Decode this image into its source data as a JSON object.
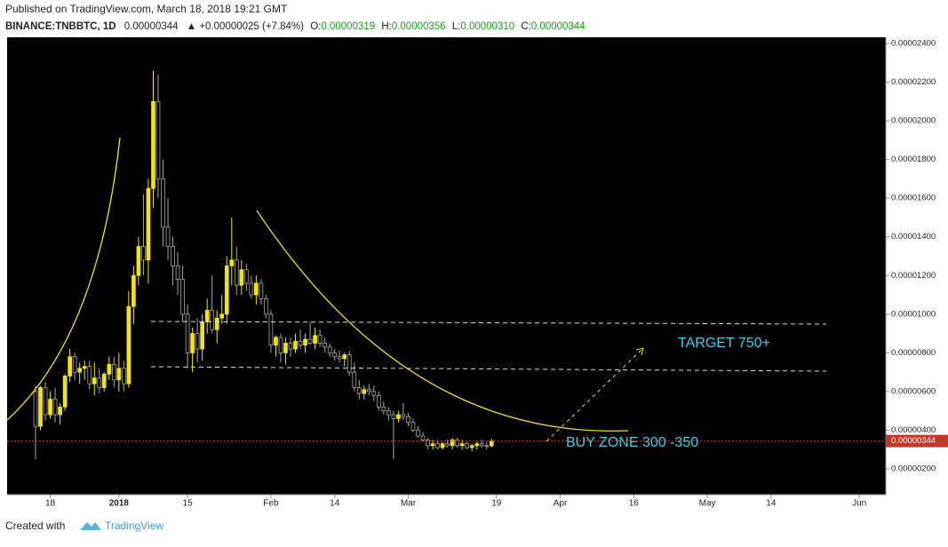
{
  "header": {
    "published": "Published on TradingView.com, March 18, 2018 19:21 GMT",
    "symbol": "BINANCE:TNBBTC, 1D",
    "last": "0.00000344",
    "change": "▲ +0.00000025 (+7.84%)",
    "open_label": "O:",
    "open": "0.00000319",
    "high_label": "H:",
    "high": "0.00000356",
    "low_label": "L:",
    "low": "0.00000310",
    "close_label": "C:",
    "close": "0.00000344"
  },
  "footer": {
    "created": "Created with",
    "brand": "TradingView"
  },
  "chart_data": {
    "type": "candlestick",
    "ohlc": [
      [
        6e-06,
        6.3e-06,
        2.5e-06,
        4.2e-06
      ],
      [
        4.2e-06,
        6.3e-06,
        4e-06,
        6.2e-06
      ],
      [
        6.2e-06,
        6.5e-06,
        4.5e-06,
        4.8e-06
      ],
      [
        4.8e-06,
        6e-06,
        4.6e-06,
        5.6e-06
      ],
      [
        5.6e-06,
        6.2e-06,
        4.4e-06,
        4.8e-06
      ],
      [
        4.8e-06,
        5.4e-06,
        4.3e-06,
        5.2e-06
      ],
      [
        5.2e-06,
        6.9e-06,
        5e-06,
        6.8e-06
      ],
      [
        6.8e-06,
        8.2e-06,
        6.5e-06,
        7.8e-06
      ],
      [
        7.8e-06,
        8e-06,
        6.6e-06,
        7e-06
      ],
      [
        7e-06,
        7.5e-06,
        6.4e-06,
        7.2e-06
      ],
      [
        7.2e-06,
        7.6e-06,
        6.6e-06,
        7.3e-06
      ],
      [
        7.3e-06,
        7.6e-06,
        6.1e-06,
        6.4e-06
      ],
      [
        6.4e-06,
        7.5e-06,
        5.8e-06,
        6.7e-06
      ],
      [
        6.7e-06,
        7.2e-06,
        5.9e-06,
        6.2e-06
      ],
      [
        6.2e-06,
        7e-06,
        6e-06,
        6.9e-06
      ],
      [
        6.9e-06,
        7.8e-06,
        6.6e-06,
        7.4e-06
      ],
      [
        7.4e-06,
        7.8e-06,
        6.2e-06,
        6.6e-06
      ],
      [
        6.6e-06,
        8e-06,
        6e-06,
        7.2e-06
      ],
      [
        7.2e-06,
        7.6e-06,
        6e-06,
        6.4e-06
      ],
      [
        6.4e-06,
        1.12e-05,
        6.2e-06,
        1.04e-05
      ],
      [
        1.04e-05,
        1.25e-05,
        9.5e-06,
        1.2e-05
      ],
      [
        1.2e-05,
        1.4e-05,
        1.15e-05,
        1.35e-05
      ],
      [
        1.35e-05,
        1.62e-05,
        1.2e-05,
        1.28e-05
      ],
      [
        1.28e-05,
        1.7e-05,
        1.16e-05,
        1.65e-05
      ],
      [
        1.65e-05,
        2.26e-05,
        1.55e-05,
        2.1e-05
      ],
      [
        2.1e-05,
        2.24e-05,
        1.6e-05,
        1.7e-05
      ],
      [
        1.7e-05,
        1.8e-05,
        1.35e-05,
        1.45e-05
      ],
      [
        1.45e-05,
        1.6e-05,
        1.28e-05,
        1.35e-05
      ],
      [
        1.35e-05,
        1.4e-05,
        1.15e-05,
        1.25e-05
      ],
      [
        1.25e-05,
        1.32e-05,
        1.1e-05,
        1.18e-05
      ],
      [
        1.18e-05,
        1.25e-05,
        9.6e-06,
        1e-05
      ],
      [
        1e-05,
        1.05e-05,
        7.2e-06,
        8e-06
      ],
      [
        8e-06,
        9.3e-06,
        7e-06,
        9e-06
      ],
      [
        9e-06,
        9.8e-06,
        7.5e-06,
        8.2e-06
      ],
      [
        8.2e-06,
        1e-05,
        7.6e-06,
        9.6e-06
      ],
      [
        9.6e-06,
        1.08e-05,
        9e-06,
        1.02e-05
      ],
      [
        1.02e-05,
        1.2e-05,
        9e-06,
        9.2e-06
      ],
      [
        9.2e-06,
        1.02e-05,
        8.5e-06,
        9.8e-06
      ],
      [
        9.8e-06,
        1.1e-05,
        9.5e-06,
        1e-05
      ],
      [
        1e-05,
        1.3e-05,
        9.5e-06,
        1.25e-05
      ],
      [
        1.25e-05,
        1.5e-05,
        1.15e-05,
        1.28e-05
      ],
      [
        1.28e-05,
        1.35e-05,
        1.1e-05,
        1.15e-05
      ],
      [
        1.15e-05,
        1.28e-05,
        1.1e-05,
        1.23e-05
      ],
      [
        1.23e-05,
        1.26e-05,
        1.12e-05,
        1.16e-05
      ],
      [
        1.16e-05,
        1.2e-05,
        1.08e-05,
        1.1e-05
      ],
      [
        1.1e-05,
        1.2e-05,
        1.05e-05,
        1.16e-05
      ],
      [
        1.16e-05,
        1.18e-05,
        1.05e-05,
        1.08e-05
      ],
      [
        1.08e-05,
        1.1e-05,
        9.8e-06,
        1e-05
      ],
      [
        1e-05,
        1.02e-05,
        8e-06,
        8.4e-06
      ],
      [
        8.4e-06,
        8.9e-06,
        7.8e-06,
        8.8e-06
      ],
      [
        8.8e-06,
        9e-06,
        7.5e-06,
        8e-06
      ],
      [
        8e-06,
        8.8e-06,
        7.4e-06,
        8.5e-06
      ],
      [
        8.5e-06,
        8.8e-06,
        7.8e-06,
        8.2e-06
      ],
      [
        8.2e-06,
        9e-06,
        8e-06,
        8.6e-06
      ],
      [
        8.6e-06,
        9.2e-06,
        8.2e-06,
        8.4e-06
      ],
      [
        8.4e-06,
        9e-06,
        8e-06,
        8.7e-06
      ],
      [
        8.7e-06,
        9.6e-06,
        8.4e-06,
        8.5e-06
      ],
      [
        8.5e-06,
        9.3e-06,
        8.2e-06,
        8.9e-06
      ],
      [
        8.9e-06,
        9.2e-06,
        8.3e-06,
        8.5e-06
      ],
      [
        8.5e-06,
        8.8e-06,
        8e-06,
        8.3e-06
      ],
      [
        8.3e-06,
        8.5e-06,
        7.8e-06,
        8e-06
      ],
      [
        8e-06,
        8.2e-06,
        7.6e-06,
        7.8e-06
      ],
      [
        7.8e-06,
        8.1e-06,
        7.5e-06,
        7.7e-06
      ],
      [
        7.7e-06,
        8e-06,
        7.3e-06,
        7.9e-06
      ],
      [
        7.9e-06,
        8.1e-06,
        6.8e-06,
        7e-06
      ],
      [
        7e-06,
        7.5e-06,
        6e-06,
        6.2e-06
      ],
      [
        6.2e-06,
        6.6e-06,
        5.6e-06,
        5.9e-06
      ],
      [
        5.9e-06,
        6.3e-06,
        5.6e-06,
        6.1e-06
      ],
      [
        6.1e-06,
        6.4e-06,
        5.8e-06,
        6e-06
      ],
      [
        6e-06,
        6.3e-06,
        5.5e-06,
        5.8e-06
      ],
      [
        5.8e-06,
        6e-06,
        5e-06,
        5.2e-06
      ],
      [
        5.2e-06,
        5.5e-06,
        4.8e-06,
        5e-06
      ],
      [
        5e-06,
        5.2e-06,
        4.5e-06,
        4.8e-06
      ],
      [
        4.8e-06,
        5e-06,
        2.5e-06,
        4.6e-06
      ],
      [
        4.6e-06,
        5e-06,
        4.4e-06,
        4.8e-06
      ],
      [
        4.8e-06,
        5.4e-06,
        4.5e-06,
        4.7e-06
      ],
      [
        4.7e-06,
        4.9e-06,
        4.2e-06,
        4.4e-06
      ],
      [
        4.4e-06,
        4.6e-06,
        3.9e-06,
        4e-06
      ],
      [
        4e-06,
        4.2e-06,
        3.6e-06,
        3.7e-06
      ],
      [
        3.7e-06,
        3.9e-06,
        3.4e-06,
        3.5e-06
      ],
      [
        3.5e-06,
        3.6e-06,
        3e-06,
        3.2e-06
      ],
      [
        3.2e-06,
        3.5e-06,
        3e-06,
        3.3e-06
      ],
      [
        3.3e-06,
        3.5e-06,
        3e-06,
        3.1e-06
      ],
      [
        3.1e-06,
        3.4e-06,
        3e-06,
        3.3e-06
      ],
      [
        3.3e-06,
        3.5e-06,
        3.1e-06,
        3.2e-06
      ],
      [
        3.2e-06,
        3.6e-06,
        3e-06,
        3.5e-06
      ],
      [
        3.5e-06,
        3.6e-06,
        3.1e-06,
        3.2e-06
      ],
      [
        3.2e-06,
        3.5e-06,
        3e-06,
        3.3e-06
      ],
      [
        3.3e-06,
        3.4e-06,
        3e-06,
        3.1e-06
      ],
      [
        3.1e-06,
        3.3e-06,
        2.9e-06,
        3.2e-06
      ],
      [
        3.2e-06,
        3.4e-06,
        3e-06,
        3.3e-06
      ],
      [
        3.3e-06,
        3.5e-06,
        3.1e-06,
        3.2e-06
      ],
      [
        3.2e-06,
        3.4e-06,
        3e-06,
        3.19e-06
      ],
      [
        3.19e-06,
        3.56e-06,
        3.1e-06,
        3.44e-06
      ]
    ],
    "up_color": "#f2e21b",
    "down_color": "#a8a8a8",
    "xlim": [
      -5.8,
      173.4
    ],
    "xticks": [
      {
        "value": 3,
        "label": "18"
      },
      {
        "value": 17,
        "label": "2018"
      },
      {
        "value": 31,
        "label": "15"
      },
      {
        "value": 48,
        "label": "Feb"
      },
      {
        "value": 61,
        "label": "14"
      },
      {
        "value": 76,
        "label": "Mar"
      },
      {
        "value": 94,
        "label": "19"
      },
      {
        "value": 107,
        "label": "Apr"
      },
      {
        "value": 122,
        "label": "16"
      },
      {
        "value": 137,
        "label": "May"
      },
      {
        "value": 150,
        "label": "14"
      },
      {
        "value": 168,
        "label": "Jun"
      }
    ],
    "ylim": [
      6.68e-07,
      2.432e-05
    ],
    "yticks": [
      {
        "value": 2e-06,
        "label": "0.00000200"
      },
      {
        "value": 4e-06,
        "label": "0.00000400"
      },
      {
        "value": 6e-06,
        "label": "0.00000600"
      },
      {
        "value": 8e-06,
        "label": "0.00000800"
      },
      {
        "value": 1e-05,
        "label": "0.00001000"
      },
      {
        "value": 1.2e-05,
        "label": "0.00001200"
      },
      {
        "value": 1.4e-05,
        "label": "0.00001400"
      },
      {
        "value": 1.6e-05,
        "label": "0.00001600"
      },
      {
        "value": 1.8e-05,
        "label": "0.00001800"
      },
      {
        "value": 2e-05,
        "label": "0.00002000"
      },
      {
        "value": 2.2e-05,
        "label": "0.00002200"
      },
      {
        "value": 2.4e-05,
        "label": "0.00002400"
      }
    ],
    "last_price": {
      "value": 3.44e-06,
      "label": "0.00000344"
    },
    "annotations": [
      "TARGET 750+",
      "BUY ZONE 300 -350"
    ]
  }
}
